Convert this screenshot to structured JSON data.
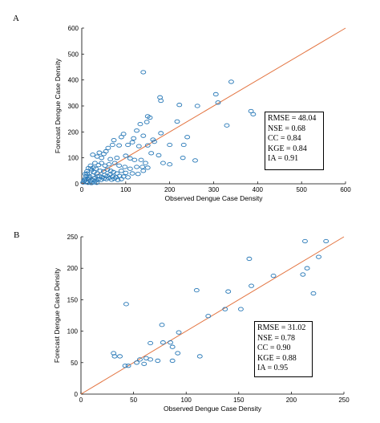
{
  "panels": [
    {
      "letter": "A",
      "xlabel": "Observed Dengue Case Density",
      "ylabel": "Forecast Dengue Case Density",
      "stats": [
        "RMSE = 48.04",
        "NSE = 0.68",
        "CC = 0.84",
        "KGE = 0.84",
        "IA = 0.91"
      ]
    },
    {
      "letter": "B",
      "xlabel": "Observed Dengue Case Density",
      "ylabel": "Forecast Dengue Case Density",
      "stats": [
        "RMSE = 31.02",
        "NSE = 0.78",
        "CC = 0.90",
        "KGE = 0.88",
        "IA = 0.95"
      ]
    }
  ],
  "colors": {
    "points": "#2a7ab8",
    "fit_line": "#e3733f",
    "axes": "#000000"
  },
  "chart_data": [
    {
      "type": "scatter",
      "title": "",
      "xlabel": "Observed Dengue Case Density",
      "ylabel": "Forecast Dengue Case Density",
      "xlim": [
        0,
        600
      ],
      "ylim": [
        0,
        600
      ],
      "xticks": [
        0,
        100,
        200,
        300,
        400,
        500,
        600
      ],
      "yticks": [
        0,
        100,
        200,
        300,
        400,
        500,
        600
      ],
      "reference_line": "1:1",
      "grid": false,
      "points": [
        [
          140,
          430
        ],
        [
          178,
          333
        ],
        [
          180,
          320
        ],
        [
          222,
          304
        ],
        [
          150,
          260
        ],
        [
          155,
          255
        ],
        [
          133,
          230
        ],
        [
          148,
          238
        ],
        [
          340,
          393
        ],
        [
          305,
          345
        ],
        [
          310,
          313
        ],
        [
          330,
          225
        ],
        [
          385,
          280
        ],
        [
          390,
          268
        ],
        [
          263,
          300
        ],
        [
          240,
          180
        ],
        [
          217,
          240
        ],
        [
          180,
          195
        ],
        [
          162,
          170
        ],
        [
          165,
          162
        ],
        [
          140,
          185
        ],
        [
          125,
          205
        ],
        [
          200,
          150
        ],
        [
          232,
          150
        ],
        [
          230,
          100
        ],
        [
          258,
          90
        ],
        [
          185,
          80
        ],
        [
          200,
          75
        ],
        [
          175,
          110
        ],
        [
          158,
          118
        ],
        [
          150,
          148
        ],
        [
          130,
          145
        ],
        [
          118,
          175
        ],
        [
          115,
          160
        ],
        [
          95,
          192
        ],
        [
          90,
          180
        ],
        [
          105,
          150
        ],
        [
          85,
          148
        ],
        [
          73,
          168
        ],
        [
          70,
          150
        ],
        [
          60,
          138
        ],
        [
          50,
          115
        ],
        [
          55,
          125
        ],
        [
          40,
          120
        ],
        [
          35,
          105
        ],
        [
          25,
          112
        ],
        [
          45,
          100
        ],
        [
          65,
          95
        ],
        [
          80,
          100
        ],
        [
          100,
          108
        ],
        [
          110,
          98
        ],
        [
          120,
          92
        ],
        [
          135,
          92
        ],
        [
          145,
          80
        ],
        [
          138,
          65
        ],
        [
          125,
          65
        ],
        [
          110,
          58
        ],
        [
          98,
          65
        ],
        [
          85,
          70
        ],
        [
          75,
          80
        ],
        [
          62,
          75
        ],
        [
          53,
          70
        ],
        [
          45,
          80
        ],
        [
          38,
          72
        ],
        [
          30,
          80
        ],
        [
          20,
          70
        ],
        [
          15,
          60
        ],
        [
          22,
          52
        ],
        [
          28,
          45
        ],
        [
          35,
          40
        ],
        [
          42,
          50
        ],
        [
          50,
          48
        ],
        [
          58,
          55
        ],
        [
          66,
          50
        ],
        [
          72,
          45
        ],
        [
          80,
          40
        ],
        [
          90,
          50
        ],
        [
          100,
          42
        ],
        [
          115,
          40
        ],
        [
          128,
          38
        ],
        [
          140,
          50
        ],
        [
          150,
          62
        ],
        [
          10,
          30
        ],
        [
          12,
          40
        ],
        [
          8,
          20
        ],
        [
          5,
          10
        ],
        [
          3,
          5
        ],
        [
          15,
          18
        ],
        [
          18,
          28
        ],
        [
          24,
          32
        ],
        [
          30,
          22
        ],
        [
          36,
          28
        ],
        [
          40,
          30
        ],
        [
          46,
          26
        ],
        [
          52,
          34
        ],
        [
          58,
          30
        ],
        [
          64,
          35
        ],
        [
          70,
          28
        ],
        [
          78,
          25
        ],
        [
          86,
          30
        ],
        [
          95,
          28
        ],
        [
          105,
          25
        ],
        [
          20,
          10
        ],
        [
          26,
          14
        ],
        [
          32,
          12
        ],
        [
          38,
          18
        ],
        [
          44,
          15
        ],
        [
          50,
          20
        ],
        [
          56,
          18
        ],
        [
          62,
          22
        ],
        [
          68,
          16
        ],
        [
          74,
          20
        ],
        [
          82,
          15
        ],
        [
          90,
          18
        ],
        [
          10,
          8
        ],
        [
          14,
          4
        ],
        [
          22,
          3
        ],
        [
          28,
          6
        ],
        [
          34,
          4
        ],
        [
          6,
          14
        ],
        [
          16,
          24
        ],
        [
          12,
          48
        ],
        [
          8,
          38
        ],
        [
          20,
          58
        ],
        [
          26,
          62
        ],
        [
          32,
          58
        ]
      ],
      "stats": [
        "RMSE = 48.04",
        "NSE = 0.68",
        "CC = 0.84",
        "KGE = 0.84",
        "IA = 0.91"
      ]
    },
    {
      "type": "scatter",
      "title": "",
      "xlabel": "Observed Dengue Case Density",
      "ylabel": "Forecast Dengue Case Density",
      "xlim": [
        0,
        250
      ],
      "ylim": [
        0,
        250
      ],
      "xticks": [
        0,
        50,
        100,
        150,
        200,
        250
      ],
      "yticks": [
        0,
        50,
        100,
        150,
        200,
        250
      ],
      "reference_line": "1:1",
      "grid": false,
      "points": [
        [
          213,
          243
        ],
        [
          233,
          243
        ],
        [
          226,
          218
        ],
        [
          215,
          200
        ],
        [
          211,
          190
        ],
        [
          221,
          160
        ],
        [
          183,
          188
        ],
        [
          160,
          215
        ],
        [
          162,
          172
        ],
        [
          152,
          135
        ],
        [
          140,
          163
        ],
        [
          137,
          135
        ],
        [
          121,
          124
        ],
        [
          110,
          165
        ],
        [
          113,
          60
        ],
        [
          93,
          98
        ],
        [
          87,
          75
        ],
        [
          92,
          65
        ],
        [
          85,
          82
        ],
        [
          78,
          82
        ],
        [
          77,
          110
        ],
        [
          73,
          53
        ],
        [
          87,
          53
        ],
        [
          66,
          81
        ],
        [
          66,
          55
        ],
        [
          62,
          57
        ],
        [
          60,
          48
        ],
        [
          56,
          55
        ],
        [
          53,
          50
        ],
        [
          45,
          45
        ],
        [
          42,
          45
        ],
        [
          43,
          143
        ],
        [
          37,
          60
        ],
        [
          31,
          65
        ],
        [
          32,
          60
        ]
      ],
      "stats": [
        "RMSE = 31.02",
        "NSE = 0.78",
        "CC = 0.90",
        "KGE = 0.88",
        "IA = 0.95"
      ]
    }
  ]
}
